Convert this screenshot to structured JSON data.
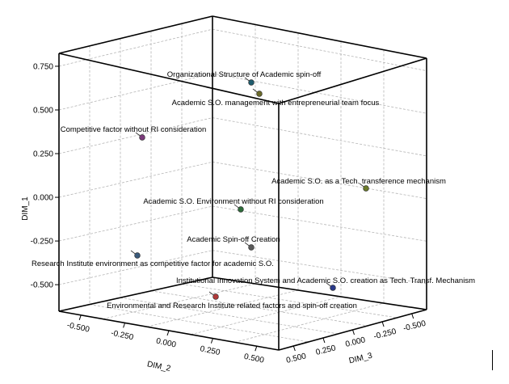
{
  "chart_data": {
    "type": "scatter",
    "title": "",
    "axes": {
      "y_title": "DIM_1",
      "x_title": "DIM_2",
      "z_title": "DIM_3",
      "y_ticks": [
        "0.750",
        "0.500",
        "0.250",
        "0.000",
        "-0.250",
        "-0.500"
      ],
      "x_ticks": [
        "-0.500",
        "-0.250",
        "0.000",
        "0.250",
        "0.500"
      ],
      "z_ticks": [
        "0.500",
        "0.250",
        "0.000",
        "-0.250",
        "-0.500"
      ],
      "grid": true
    },
    "points": [
      {
        "label": "Organizational Structure of Academic spin-off",
        "dim_1": 0.74,
        "dim_2": 0.3,
        "dim_3": 0.05,
        "color": "#1f5c6e"
      },
      {
        "label": "Academic S.O. management with entrepreneurial team focus",
        "dim_1": 0.66,
        "dim_2": 0.35,
        "dim_3": 0.05,
        "color": "#6b6a2a"
      },
      {
        "label": "Competitive factor without RI consideration",
        "dim_1": 0.38,
        "dim_2": -0.3,
        "dim_3": 0.05,
        "color": "#7a3a7a"
      },
      {
        "label": "Academic S.O. as a Tech. transference mechanism",
        "dim_1": 0.1,
        "dim_2": 0.45,
        "dim_3": -0.4,
        "color": "#6b7a2a"
      },
      {
        "label": "Academic S.O. Environment without RI consideration",
        "dim_1": -0.02,
        "dim_2": 0.2,
        "dim_3": 0.05,
        "color": "#2e6b3a"
      },
      {
        "label": "Academic Spin-off Creation",
        "dim_1": -0.25,
        "dim_2": 0.25,
        "dim_3": 0.05,
        "color": "#5a5a5a"
      },
      {
        "label": "Research Institute environment as competitive factor for academic S.O.",
        "dim_1": -0.3,
        "dim_2": -0.4,
        "dim_3": 0.05,
        "color": "#3a5a7a"
      },
      {
        "label": "Institutional Innovation System and Academic S.O. creation as Tech. Transf. Mechanism",
        "dim_1": -0.5,
        "dim_2": 0.45,
        "dim_3": -0.3,
        "color": "#2a3a8a"
      },
      {
        "label": "Environmental and Research Institute related factors and spin-off creation",
        "dim_1": -0.52,
        "dim_2": 0.0,
        "dim_3": 0.35,
        "color": "#b03a3a"
      }
    ]
  }
}
